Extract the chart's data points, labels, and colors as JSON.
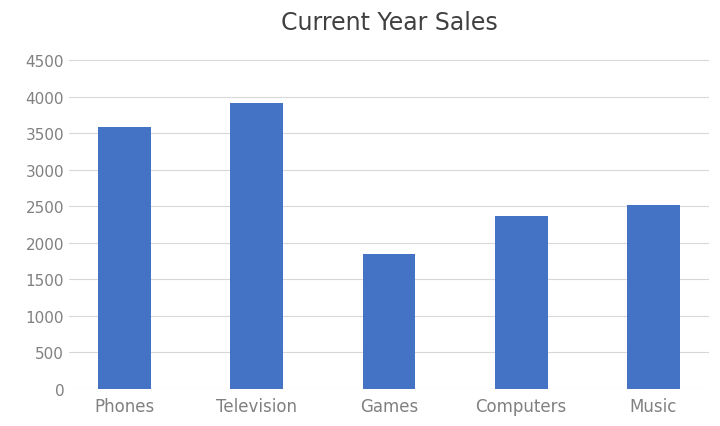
{
  "title": "Current Year Sales",
  "categories": [
    "Phones",
    "Television",
    "Games",
    "Computers",
    "Music"
  ],
  "values": [
    3580,
    3920,
    1840,
    2360,
    2520
  ],
  "bar_color": "#4472C4",
  "background_color": "#ffffff",
  "ylim": [
    0,
    4700
  ],
  "yticks": [
    0,
    500,
    1000,
    1500,
    2000,
    2500,
    3000,
    3500,
    4000,
    4500
  ],
  "title_fontsize": 17,
  "tick_label_fontsize": 11,
  "x_tick_label_fontsize": 12,
  "title_color": "#404040",
  "tick_color": "#808080",
  "grid_color": "#d8d8d8",
  "bar_width": 0.4,
  "figsize": [
    7.2,
    4.27
  ],
  "dpi": 100
}
